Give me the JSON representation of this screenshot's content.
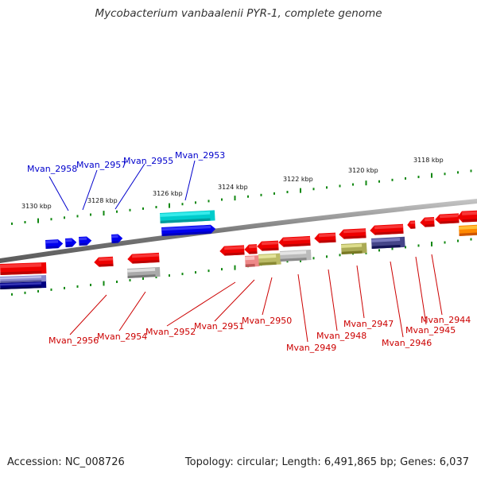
{
  "title": "Mycobacterium vanbaalenii PYR-1, complete genome",
  "footer": {
    "accession": "Accession: NC_008726",
    "info": "Topology: circular; Length: 6,491,865 bp; Genes: 6,037"
  },
  "colors": {
    "plus_strand": "#0000ee",
    "minus_strand": "#ee0000",
    "highlight_plus": "#00cccc",
    "backbone": "#8a8a8a",
    "ticks": "#118811",
    "label_plus": "#0000cc",
    "label_minus": "#cc0000",
    "orange": "#ff8800"
  },
  "scale_labels": [
    "3130 kbp",
    "3128 kbp",
    "3126 kbp",
    "3124 kbp",
    "3122 kbp",
    "3120 kbp",
    "3118 kbp"
  ],
  "genes_top": [
    {
      "name": "Mvan_2958"
    },
    {
      "name": "Mvan_2957"
    },
    {
      "name": "Mvan_2955"
    },
    {
      "name": "Mvan_2953"
    }
  ],
  "genes_bottom": [
    {
      "name": "Mvan_2956"
    },
    {
      "name": "Mvan_2954"
    },
    {
      "name": "Mvan_2952"
    },
    {
      "name": "Mvan_2951"
    },
    {
      "name": "Mvan_2950"
    },
    {
      "name": "Mvan_2949"
    },
    {
      "name": "Mvan_2948"
    },
    {
      "name": "Mvan_2947"
    },
    {
      "name": "Mvan_2946"
    },
    {
      "name": "Mvan_2945"
    },
    {
      "name": "Mvan_2944"
    }
  ]
}
